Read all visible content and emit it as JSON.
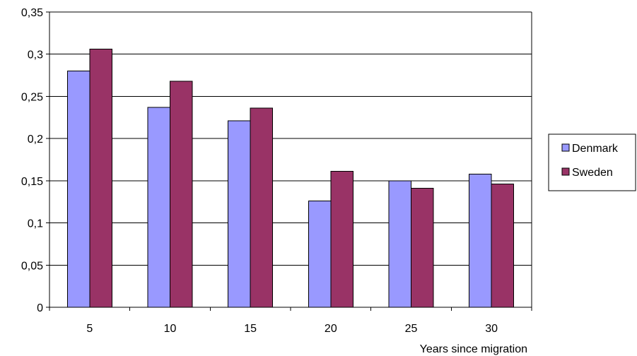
{
  "chart_data": {
    "type": "bar",
    "title": "",
    "xlabel": "Years since migration",
    "ylabel": "",
    "categories": [
      "5",
      "10",
      "15",
      "20",
      "25",
      "30"
    ],
    "series": [
      {
        "name": "Denmark",
        "color": "#9999ff",
        "values": [
          0.28,
          0.237,
          0.221,
          0.126,
          0.15,
          0.158
        ]
      },
      {
        "name": "Sweden",
        "color": "#993366",
        "values": [
          0.306,
          0.268,
          0.236,
          0.161,
          0.141,
          0.146
        ]
      }
    ],
    "ylim": [
      0,
      0.35
    ],
    "yticks": [
      0,
      0.05,
      0.1,
      0.15,
      0.2,
      0.25,
      0.3,
      0.35
    ],
    "ytick_labels": [
      "0",
      "0,05",
      "0,1",
      "0,15",
      "0,2",
      "0,25",
      "0,3",
      "0,35"
    ],
    "grid": true,
    "legend_position": "right"
  }
}
